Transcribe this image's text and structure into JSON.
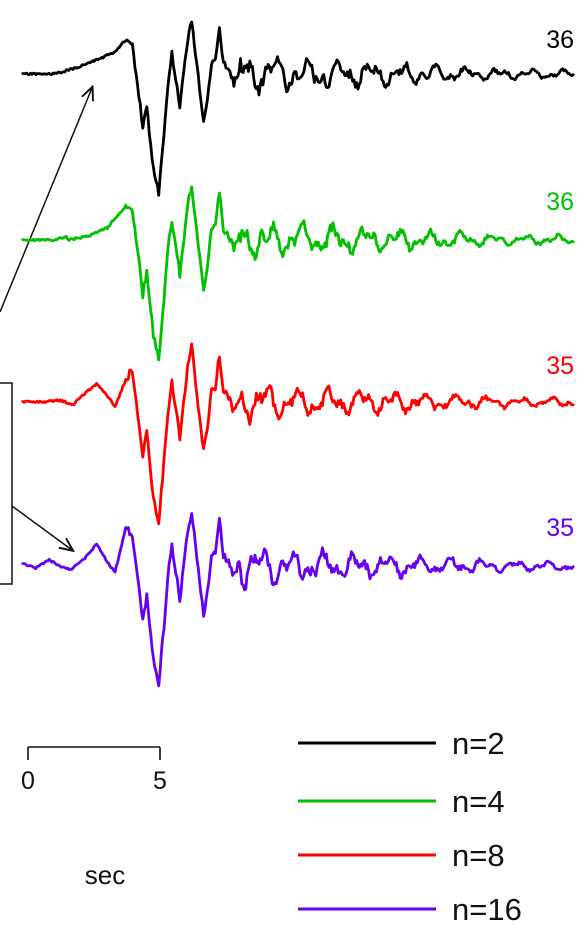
{
  "chart_data": {
    "type": "line",
    "title": "",
    "xlabel": "sec",
    "ylabel": "",
    "x_unit": "sec",
    "x_range": [
      -0.2,
      14.5
    ],
    "scale_bar": {
      "ticks": [
        "0",
        "5"
      ],
      "values": [
        0,
        5
      ],
      "unit": "sec"
    },
    "legend": {
      "placement": "bottom-right"
    },
    "series": [
      {
        "name": "n=2",
        "color": "#000000",
        "peak_label": "36",
        "noise_seed": 11
      },
      {
        "name": "n=4",
        "color": "#00c000",
        "peak_label": "36",
        "noise_seed": 23
      },
      {
        "name": "n=8",
        "color": "#ff0000",
        "peak_label": "35",
        "noise_seed": 37
      },
      {
        "name": "n=16",
        "color": "#6600ee",
        "peak_label": "35",
        "noise_seed": 53
      }
    ],
    "annotations": [
      {
        "type": "arrow",
        "target_series": "n=2",
        "target_time": 1.7
      },
      {
        "type": "arrow",
        "target_series": "n=16",
        "target_time": 1.3
      }
    ]
  }
}
